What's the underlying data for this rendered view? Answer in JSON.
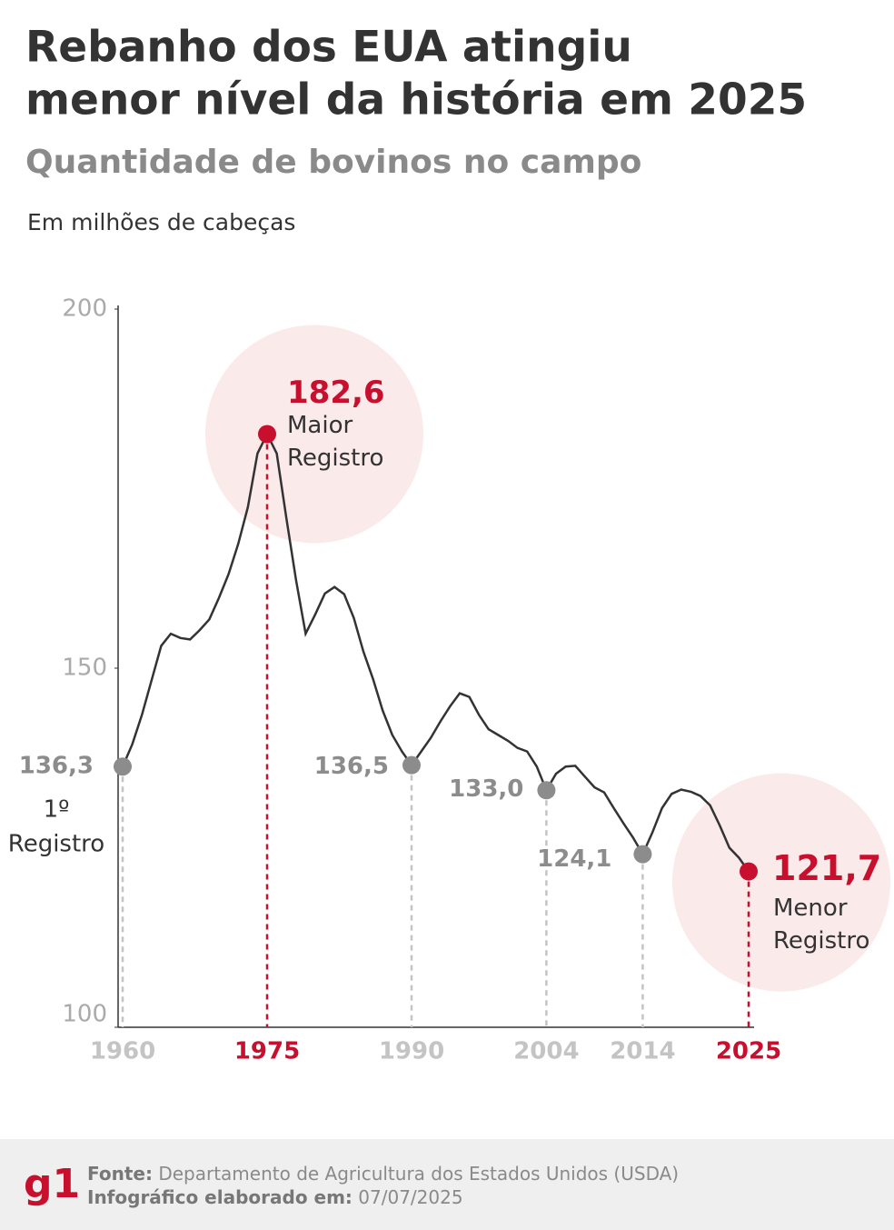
{
  "chart_data": {
    "type": "line",
    "title": [
      "Rebanho dos EUA atingiu",
      "menor nível da história em 2025"
    ],
    "subtitle": "Quantidade de bovinos no campo",
    "y_label": "Em milhões de cabeças",
    "x": [
      1960,
      1961,
      1962,
      1963,
      1964,
      1965,
      1966,
      1967,
      1968,
      1969,
      1970,
      1971,
      1972,
      1973,
      1974,
      1975,
      1976,
      1977,
      1978,
      1979,
      1980,
      1981,
      1982,
      1983,
      1984,
      1985,
      1986,
      1987,
      1988,
      1989,
      1990,
      1991,
      1992,
      1993,
      1994,
      1995,
      1996,
      1997,
      1998,
      1999,
      2000,
      2001,
      2002,
      2003,
      2004,
      2005,
      2006,
      2007,
      2008,
      2009,
      2010,
      2011,
      2012,
      2013,
      2014,
      2015,
      2016,
      2017,
      2018,
      2019,
      2020,
      2021,
      2022,
      2023,
      2024,
      2025
    ],
    "series": [
      {
        "color": "#333333",
        "values": [
          136.3,
          139.4,
          143.5,
          148.3,
          153.1,
          154.8,
          154.2,
          154.0,
          155.3,
          156.8,
          159.8,
          163.1,
          167.3,
          172.4,
          179.9,
          182.6,
          179.9,
          170.9,
          162.3,
          154.8,
          157.5,
          160.4,
          161.3,
          160.3,
          157.0,
          152.3,
          148.5,
          144.1,
          140.7,
          138.4,
          136.5,
          138.4,
          140.3,
          142.6,
          144.7,
          146.5,
          146.0,
          143.5,
          141.5,
          140.7,
          139.9,
          138.9,
          138.4,
          136.3,
          133.0,
          135.3,
          136.3,
          136.4,
          134.9,
          133.4,
          132.7,
          130.5,
          128.4,
          126.4,
          124.1,
          127.1,
          130.5,
          132.5,
          133.1,
          132.8,
          132.2,
          130.9,
          128.1,
          125.0,
          123.6,
          121.7
        ],
        "value_labels": [
          "136,3",
          null,
          null,
          null,
          null,
          null,
          null,
          null,
          null,
          null,
          null,
          null,
          null,
          null,
          null,
          "182,6",
          null,
          null,
          null,
          null,
          null,
          null,
          null,
          null,
          null,
          null,
          null,
          null,
          null,
          null,
          "136,5",
          null,
          null,
          null,
          null,
          null,
          null,
          null,
          null,
          null,
          null,
          null,
          null,
          null,
          "133,0",
          null,
          null,
          null,
          null,
          null,
          null,
          null,
          null,
          null,
          "124,1",
          null,
          null,
          null,
          null,
          null,
          null,
          null,
          null,
          null,
          null,
          "121,7"
        ]
      }
    ],
    "xlim": [
      1960,
      2025
    ],
    "ylim": [
      100,
      200
    ],
    "yticks": [
      100,
      150,
      200
    ],
    "xticks": [
      1960,
      1975,
      1990,
      2004,
      2014,
      2025
    ],
    "xtick_colors": [
      "#c4c4c4",
      "#c8102e",
      "#c4c4c4",
      "#c4c4c4",
      "#c4c4c4",
      "#c8102e"
    ],
    "point_colors": [
      "#8c8c8c",
      "#c8102e",
      "#8c8c8c",
      "#8c8c8c",
      "#8c8c8c",
      "#c8102e"
    ],
    "notes": [
      [
        "1º",
        "Registro"
      ],
      [
        "Maior",
        "Registro"
      ],
      null,
      null,
      null,
      [
        "Menor",
        "Registro"
      ]
    ],
    "halo_color": "#fbeaea"
  },
  "footer": {
    "logo": "g1",
    "source_label": "Fonte:",
    "source": "Departamento de Agricultura dos Estados Unidos (USDA)",
    "date_label": "Infográfico elaborado em:",
    "date": "07/07/2025"
  }
}
